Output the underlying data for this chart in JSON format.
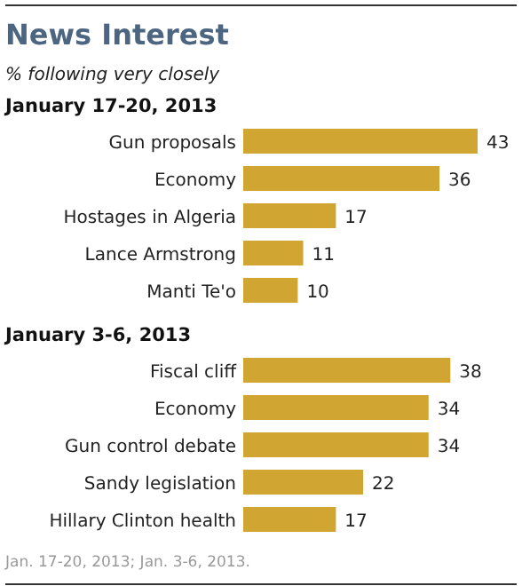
{
  "chart_data": [
    {
      "type": "bar",
      "orientation": "horizontal",
      "title": "News Interest",
      "subtitle": "% following very closely",
      "annotations": [
        "January 17-20, 2013"
      ],
      "categories": [
        "Gun proposals",
        "Economy",
        "Hostages in Algeria",
        "Lance Armstrong",
        "Manti Te'o"
      ],
      "values": [
        43,
        36,
        17,
        11,
        10
      ],
      "color": "#d1a531",
      "data_labels": true
    },
    {
      "type": "bar",
      "orientation": "horizontal",
      "annotations": [
        "January 3-6, 2013",
        "Jan. 17-20, 2013; Jan. 3-6, 2013."
      ],
      "categories": [
        "Fiscal cliff",
        "Economy",
        "Gun control debate",
        "Sandy legislation",
        "Hillary Clinton health"
      ],
      "values": [
        38,
        34,
        34,
        22,
        17
      ],
      "color": "#d1a531",
      "data_labels": true
    }
  ]
}
